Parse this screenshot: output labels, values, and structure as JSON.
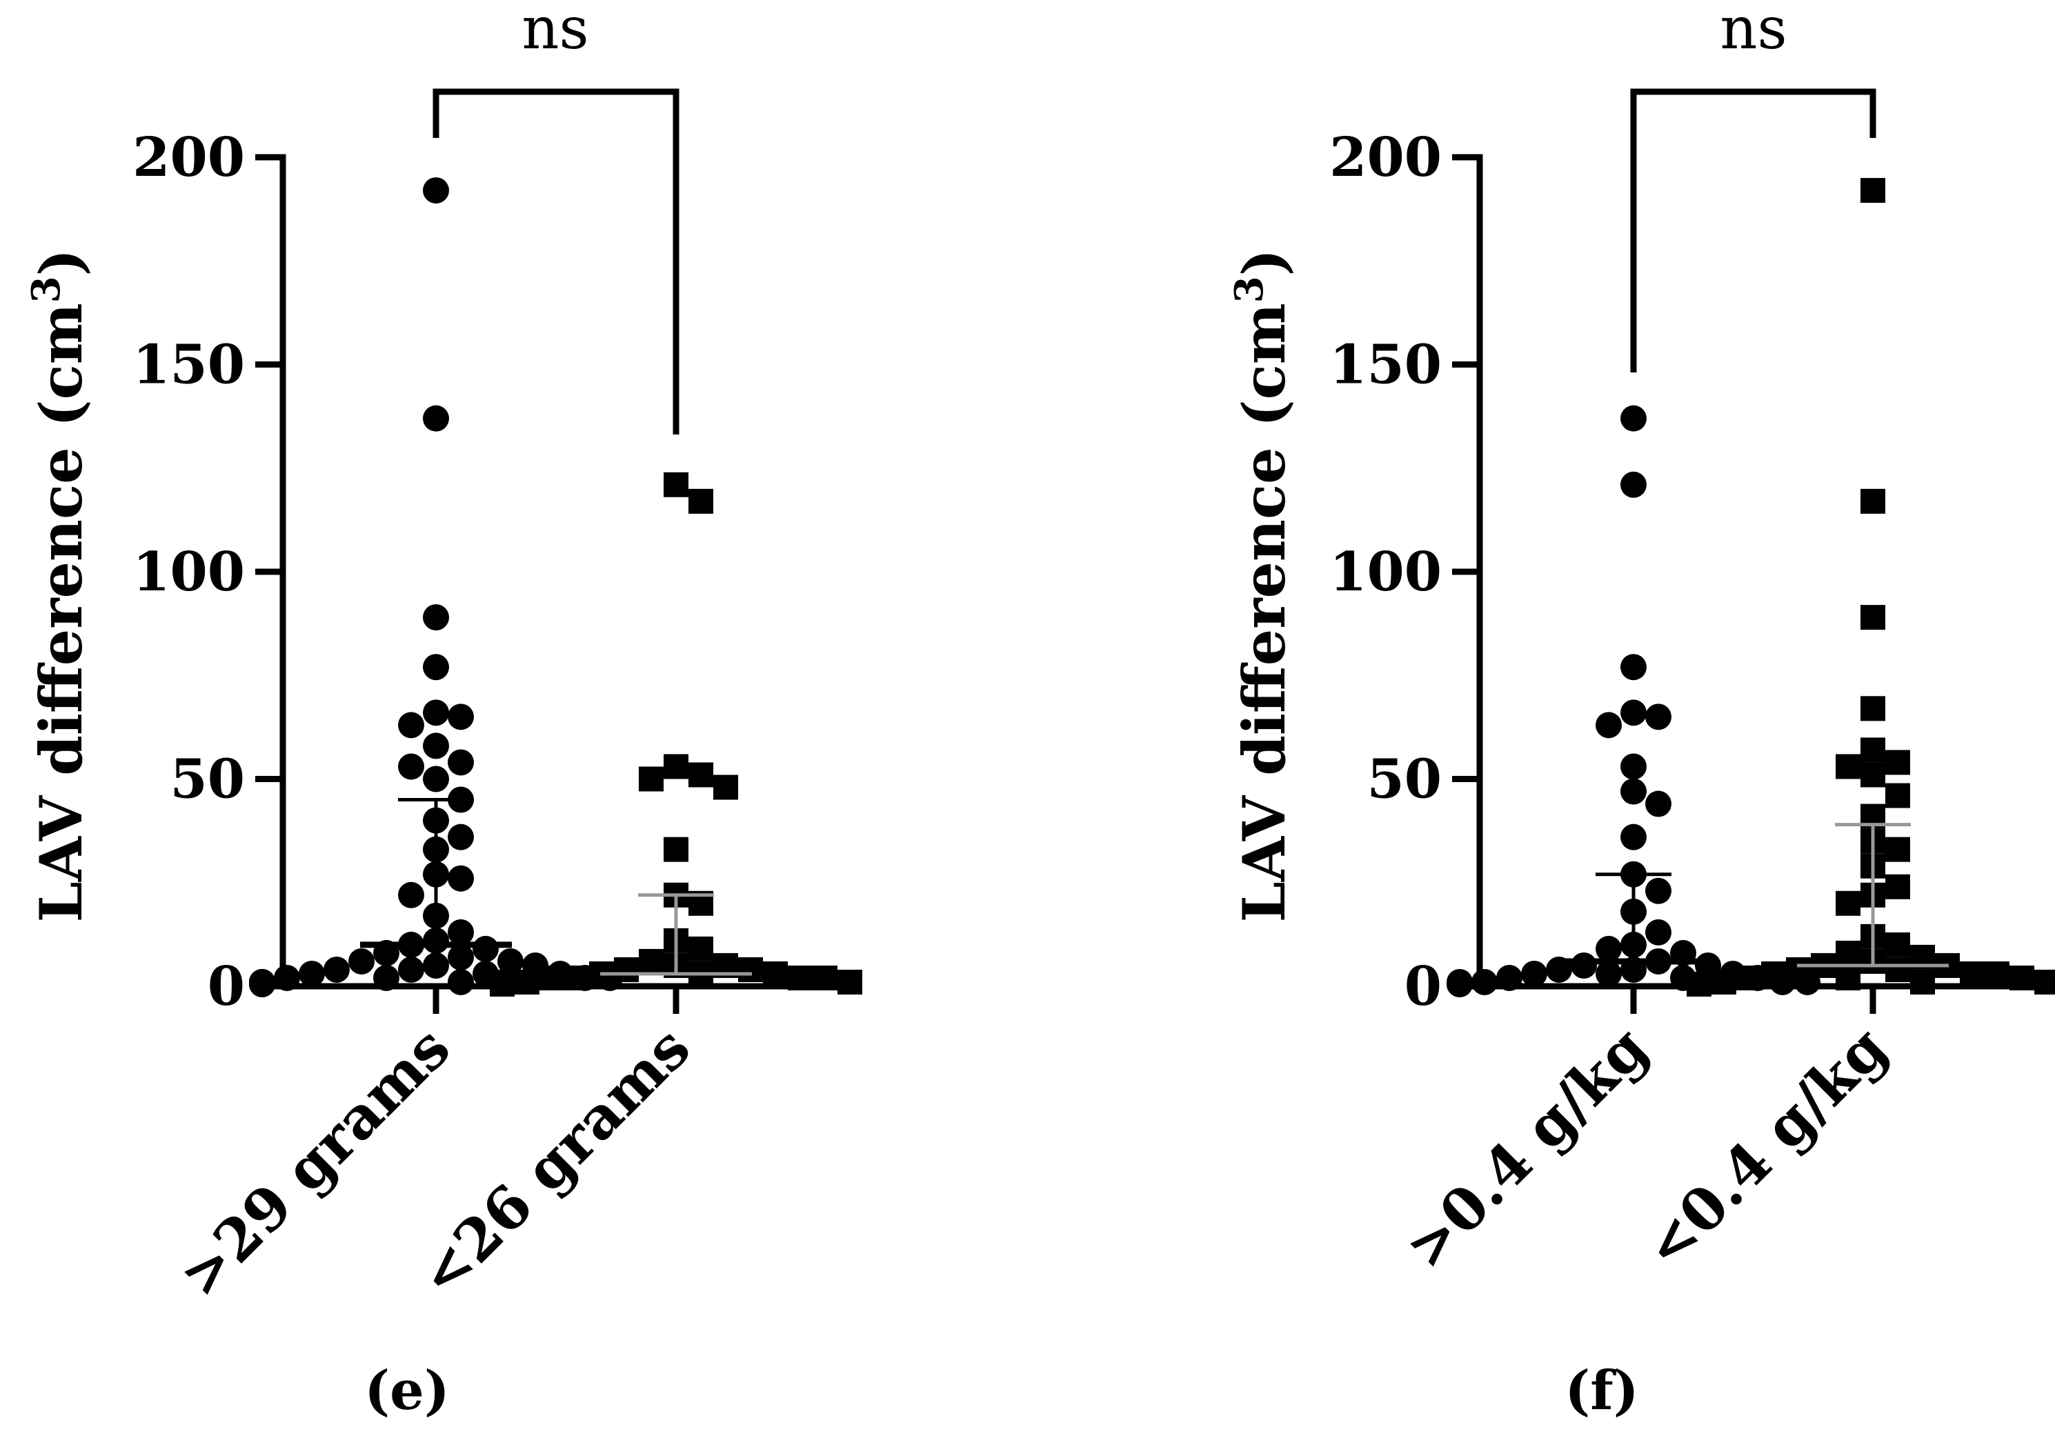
{
  "chart_data": [
    {
      "type": "scatter",
      "panel_label": "(e)",
      "ylabel": "LAV difference (cm",
      "ylabel_sup": "3",
      "ylabel_close": ")",
      "ylim": [
        0,
        200
      ],
      "yticks": [
        0,
        50,
        100,
        150,
        200
      ],
      "significance": "ns",
      "categories": [
        ">29 grams",
        "<26 grams"
      ],
      "series": [
        {
          "name": ">29 grams",
          "marker": "circle",
          "summary_color": "#000000",
          "median": 10,
          "upper": 45,
          "values": [
            192,
            137,
            89,
            77,
            66,
            65,
            63,
            58,
            54,
            53,
            50,
            45,
            40,
            36,
            33,
            27,
            26,
            22,
            17,
            13,
            11,
            10,
            9,
            8,
            7,
            6,
            6,
            5,
            5,
            4,
            4,
            3,
            3,
            3,
            2,
            2,
            2,
            2,
            1,
            1,
            1,
            1,
            1,
            0.5,
            0.5,
            0.5
          ]
        },
        {
          "name": "<26 grams",
          "marker": "square",
          "summary_color": "#999999",
          "median": 3,
          "upper": 22,
          "values": [
            121,
            117,
            53,
            51,
            50,
            48,
            33,
            22,
            20,
            11,
            9,
            6,
            5,
            5,
            4,
            4,
            3,
            3,
            3,
            2,
            2,
            2,
            2,
            1,
            1,
            1,
            1,
            0.5,
            0.5,
            0.5
          ]
        }
      ]
    },
    {
      "type": "scatter",
      "panel_label": "(f)",
      "ylabel": "LAV difference (cm",
      "ylabel_sup": "3",
      "ylabel_close": ")",
      "ylim": [
        0,
        200
      ],
      "yticks": [
        0,
        50,
        100,
        150,
        200
      ],
      "significance": "ns",
      "categories": [
        ">0.4 g/kg",
        "<0.4 g/kg"
      ],
      "series": [
        {
          "name": ">0.4 g/kg",
          "marker": "circle",
          "summary_color": "#000000",
          "median": 6,
          "upper": 27,
          "values": [
            137,
            121,
            77,
            66,
            65,
            63,
            53,
            47,
            44,
            36,
            27,
            23,
            18,
            13,
            10,
            9,
            8,
            6,
            5,
            5,
            4,
            4,
            3,
            3,
            3,
            2,
            2,
            2,
            1,
            1,
            1,
            1,
            0.5,
            0.5,
            0.5
          ]
        },
        {
          "name": "<0.4 g/kg",
          "marker": "square",
          "summary_color": "#999999",
          "median": 5,
          "upper": 39,
          "values": [
            192,
            117,
            89,
            67,
            57,
            54,
            53,
            51,
            46,
            41,
            35,
            33,
            29,
            24,
            22,
            20,
            12,
            10,
            8,
            7,
            6,
            5,
            5,
            4,
            4,
            3,
            3,
            3,
            2,
            2,
            2,
            1,
            1,
            1,
            0.5,
            0.5
          ]
        }
      ]
    }
  ]
}
